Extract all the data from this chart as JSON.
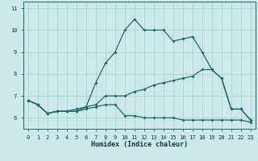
{
  "xlabel": "Humidex (Indice chaleur)",
  "ylabel": "",
  "background_color": "#cce9e8",
  "grid_color": "#afd4d0",
  "line_color": "#1a6b6b",
  "x_hours": [
    0,
    1,
    2,
    3,
    4,
    5,
    6,
    7,
    8,
    9,
    10,
    11,
    12,
    13,
    14,
    15,
    16,
    17,
    18,
    19,
    20,
    21,
    22,
    23
  ],
  "line1": [
    6.8,
    6.6,
    6.2,
    6.3,
    6.3,
    6.3,
    6.4,
    6.5,
    6.6,
    6.6,
    6.1,
    6.1,
    6.0,
    6.0,
    6.0,
    6.0,
    5.9,
    5.9,
    5.9,
    5.9,
    5.9,
    5.9,
    5.9,
    5.8
  ],
  "line2": [
    6.8,
    6.6,
    6.2,
    6.3,
    6.3,
    6.3,
    6.5,
    6.6,
    7.0,
    7.0,
    7.0,
    7.2,
    7.3,
    7.5,
    7.6,
    7.7,
    7.8,
    7.9,
    8.2,
    8.2,
    7.8,
    6.4,
    6.4,
    5.9
  ],
  "line3": [
    6.8,
    6.6,
    6.2,
    6.3,
    6.3,
    6.4,
    6.5,
    7.6,
    8.5,
    9.0,
    10.0,
    10.5,
    10.0,
    10.0,
    10.0,
    9.5,
    9.6,
    9.7,
    9.0,
    8.2,
    7.8,
    6.4,
    6.4,
    5.9
  ],
  "ylim": [
    5.5,
    11.3
  ],
  "yticks": [
    6,
    7,
    8,
    9,
    10,
    11
  ],
  "xlim": [
    -0.5,
    23.5
  ],
  "xticks": [
    0,
    1,
    2,
    3,
    4,
    5,
    6,
    7,
    8,
    9,
    10,
    11,
    12,
    13,
    14,
    15,
    16,
    17,
    18,
    19,
    20,
    21,
    22,
    23
  ],
  "marker": "D",
  "markersize": 2.0,
  "linewidth": 0.9,
  "tick_fontsize": 5.0,
  "xlabel_fontsize": 6.0
}
